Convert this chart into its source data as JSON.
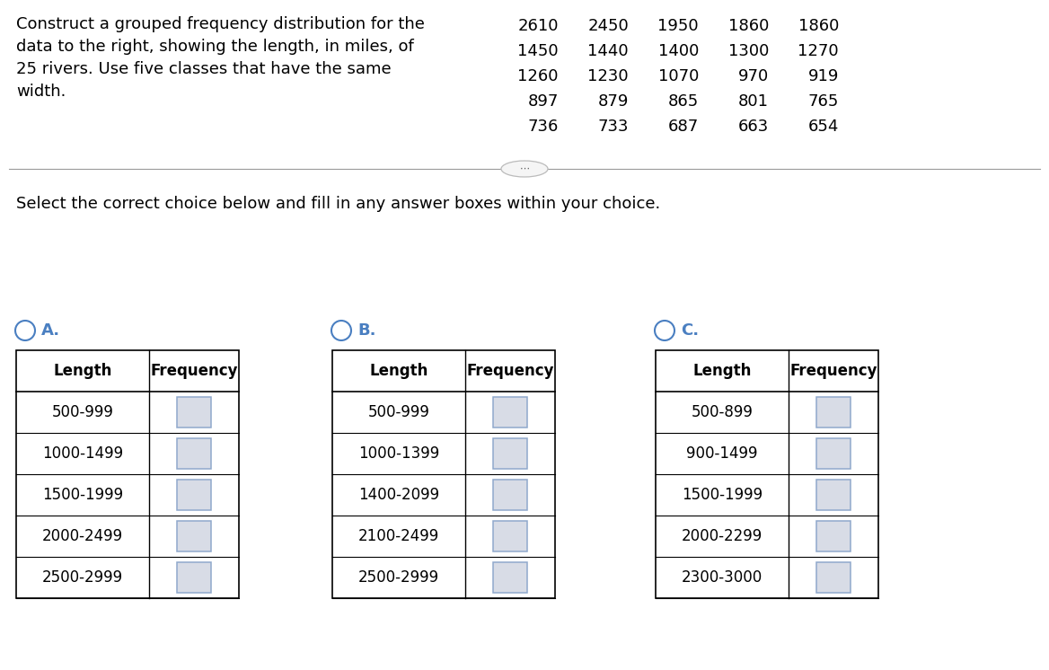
{
  "question_text": "Construct a grouped frequency distribution for the\ndata to the right, showing the length, in miles, of\n25 rivers. Use five classes that have the same\nwidth.",
  "data_grid": [
    [
      2610,
      2450,
      1950,
      1860,
      1860
    ],
    [
      1450,
      1440,
      1400,
      1300,
      1270
    ],
    [
      1260,
      1230,
      1070,
      970,
      919
    ],
    [
      897,
      879,
      865,
      801,
      765
    ],
    [
      736,
      733,
      687,
      663,
      654
    ]
  ],
  "select_text": "Select the correct choice below and fill in any answer boxes within your choice.",
  "options": [
    {
      "label": "A.",
      "rows": [
        "500-999",
        "1000-1499",
        "1500-1999",
        "2000-2499",
        "2500-2999"
      ]
    },
    {
      "label": "B.",
      "rows": [
        "500-999",
        "1000-1399",
        "1400-2099",
        "2100-2499",
        "2500-2999"
      ]
    },
    {
      "label": "C.",
      "rows": [
        "500-899",
        "900-1499",
        "1500-1999",
        "2000-2299",
        "2300-3000"
      ]
    }
  ],
  "bg_color": "#ffffff",
  "text_color": "#000000",
  "input_box_fill": "#d8dce6",
  "input_box_border": "#8fa8cc",
  "circle_color": "#4a7fc1",
  "divider_color": "#999999",
  "label_color": "#4a7fc1",
  "font_size_body": 13,
  "font_size_table": 12,
  "font_size_header": 12
}
